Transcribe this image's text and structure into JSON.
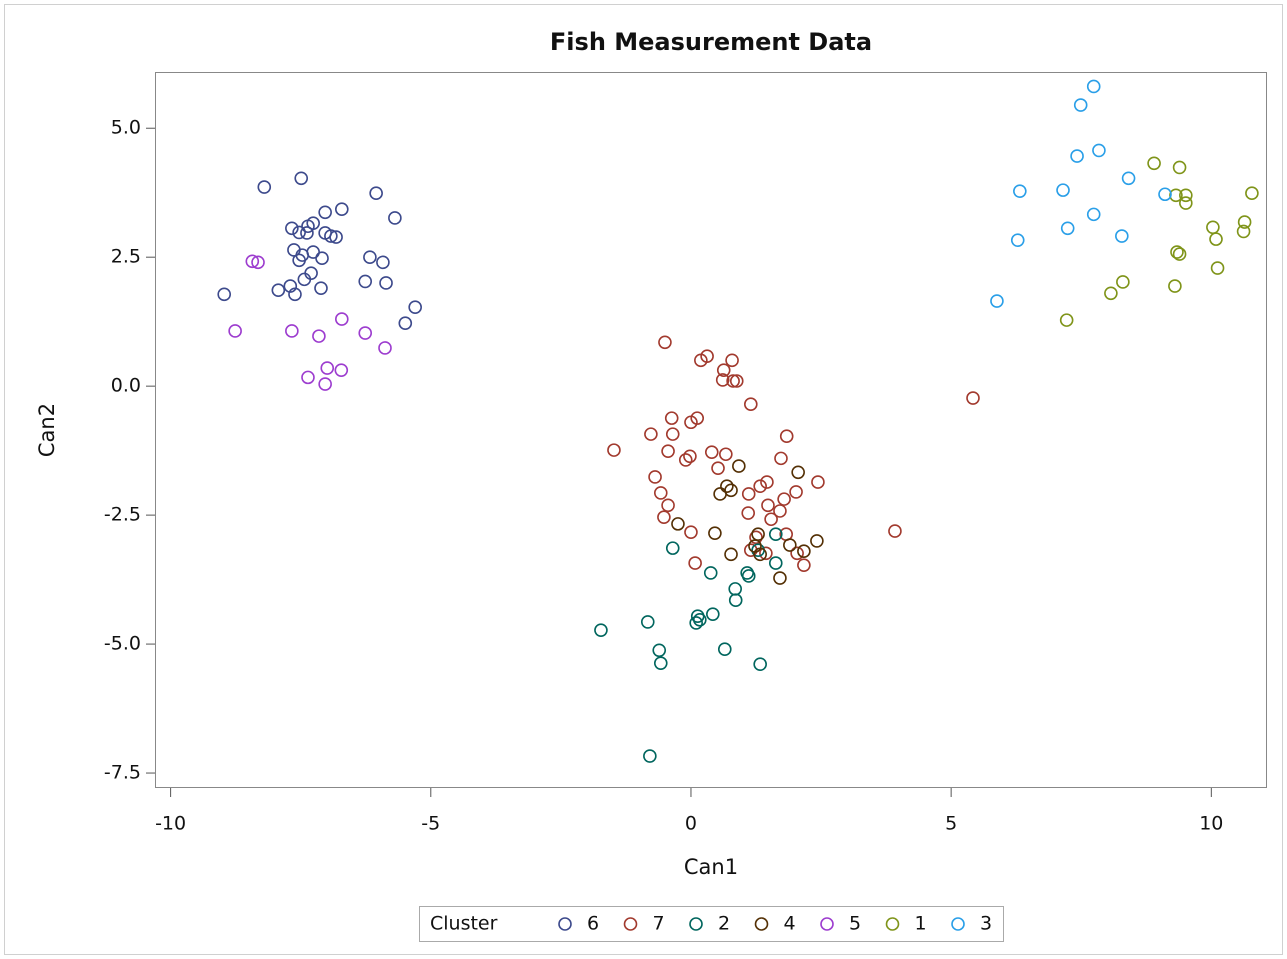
{
  "chart_data": {
    "type": "scatter",
    "title": "Fish Measurement Data",
    "x_label": "Can1",
    "y_label": "Can2",
    "legend_title": "Cluster",
    "legend": "bottom",
    "xlim": [
      -10.3,
      11.07
    ],
    "ylim": [
      -7.79,
      6.09
    ],
    "xticks": [
      -10,
      -5,
      0,
      5,
      10
    ],
    "yticks": [
      {
        "value": 5,
        "label": "5.0"
      },
      {
        "value": 2.5,
        "label": "2.5"
      },
      {
        "value": 0,
        "label": "0.0"
      },
      {
        "value": -2.5,
        "label": "-2.5"
      },
      {
        "value": -5,
        "label": "-5.0"
      },
      {
        "value": -7.5,
        "label": "-7.5"
      }
    ],
    "series": [
      {
        "name": "6",
        "color": "#3d4a8c",
        "x": [
          -8.97,
          -8.2,
          -7.49,
          -7.67,
          -7.53,
          -7.36,
          -7.26,
          -7.38,
          -7.03,
          -7.03,
          -6.92,
          -6.82,
          -6.71,
          -6.05,
          -5.69,
          -7.63,
          -7.53,
          -7.47,
          -7.26,
          -7.09,
          -7.3,
          -7.43,
          -7.7,
          -7.93,
          -7.61,
          -7.11,
          -6.17,
          -5.92,
          -6.26,
          -5.86,
          -5.3,
          -5.49
        ],
        "values": [
          1.78,
          3.86,
          4.03,
          3.06,
          2.98,
          3.1,
          3.16,
          2.97,
          3.37,
          2.97,
          2.91,
          2.89,
          3.43,
          3.74,
          3.26,
          2.64,
          2.44,
          2.54,
          2.6,
          2.48,
          2.19,
          2.07,
          1.94,
          1.86,
          1.78,
          1.9,
          2.5,
          2.4,
          2.03,
          2.0,
          1.53,
          1.22
        ]
      },
      {
        "name": "7",
        "color": "#a23a2e",
        "x": [
          -0.5,
          0.19,
          0.31,
          0.79,
          0.63,
          0.61,
          0.81,
          0.88,
          1.15,
          -0.37,
          0.12,
          0.0,
          -0.77,
          -0.35,
          1.84,
          -1.48,
          -0.44,
          0.4,
          0.67,
          -0.02,
          -0.1,
          1.73,
          0.52,
          -0.69,
          1.46,
          1.33,
          -0.58,
          1.11,
          2.02,
          2.44,
          -0.44,
          1.48,
          1.79,
          -0.52,
          1.1,
          1.54,
          1.71,
          0.0,
          1.25,
          1.83,
          3.92,
          1.15,
          1.44,
          2.04,
          2.17,
          0.08,
          5.42
        ],
        "values": [
          0.85,
          0.5,
          0.58,
          0.5,
          0.31,
          0.12,
          0.1,
          0.1,
          -0.35,
          -0.62,
          -0.62,
          -0.7,
          -0.93,
          -0.93,
          -0.97,
          -1.24,
          -1.26,
          -1.28,
          -1.32,
          -1.36,
          -1.43,
          -1.4,
          -1.59,
          -1.76,
          -1.86,
          -1.94,
          -2.07,
          -2.09,
          -2.05,
          -1.86,
          -2.31,
          -2.31,
          -2.19,
          -2.54,
          -2.46,
          -2.58,
          -2.42,
          -2.83,
          -2.93,
          -2.87,
          -2.81,
          -3.18,
          -3.24,
          -3.24,
          -3.47,
          -3.43,
          -0.23
        ]
      },
      {
        "name": "2",
        "color": "#01665e",
        "x": [
          -0.35,
          1.63,
          1.29,
          1.63,
          0.38,
          1.08,
          1.11,
          0.85,
          0.86,
          0.42,
          0.13,
          0.1,
          0.17,
          -1.73,
          -0.83,
          -0.61,
          -0.58,
          0.65,
          1.33,
          -0.79
        ],
        "values": [
          -3.14,
          -2.87,
          -3.18,
          -3.43,
          -3.62,
          -3.62,
          -3.68,
          -3.93,
          -4.15,
          -4.42,
          -4.46,
          -4.59,
          -4.53,
          -4.73,
          -4.57,
          -5.12,
          -5.37,
          -5.1,
          -5.39,
          -7.17
        ]
      },
      {
        "name": "4",
        "color": "#543005",
        "x": [
          0.92,
          2.06,
          0.69,
          0.77,
          0.56,
          -0.25,
          0.46,
          1.29,
          1.23,
          1.9,
          2.42,
          0.77,
          1.33,
          2.17,
          1.71
        ],
        "values": [
          -1.55,
          -1.67,
          -1.94,
          -2.02,
          -2.09,
          -2.67,
          -2.85,
          -2.87,
          -3.1,
          -3.08,
          -3.0,
          -3.26,
          -3.26,
          -3.2,
          -3.72
        ]
      },
      {
        "name": "5",
        "color": "#9d3dcf",
        "x": [
          -8.43,
          -8.32,
          -8.76,
          -7.67,
          -7.15,
          -6.71,
          -6.26,
          -5.88,
          -7.36,
          -6.99,
          -6.72,
          -7.03
        ],
        "values": [
          2.42,
          2.4,
          1.07,
          1.07,
          0.97,
          1.3,
          1.03,
          0.74,
          0.17,
          0.35,
          0.31,
          0.04
        ]
      },
      {
        "name": "1",
        "color": "#7f9419",
        "x": [
          8.9,
          9.39,
          9.32,
          9.51,
          9.51,
          10.78,
          10.03,
          10.64,
          10.62,
          10.09,
          9.34,
          9.39,
          10.12,
          8.3,
          8.07,
          9.3,
          7.22
        ],
        "values": [
          4.32,
          4.24,
          3.7,
          3.7,
          3.55,
          3.74,
          3.08,
          3.18,
          3.0,
          2.85,
          2.6,
          2.56,
          2.29,
          2.02,
          1.8,
          1.94,
          1.28
        ]
      },
      {
        "name": "3",
        "color": "#2a9fe8",
        "x": [
          7.74,
          7.49,
          7.84,
          7.42,
          8.41,
          6.32,
          7.15,
          9.11,
          7.74,
          7.24,
          8.28,
          6.28,
          5.88
        ],
        "values": [
          5.81,
          5.45,
          4.57,
          4.46,
          4.03,
          3.78,
          3.8,
          3.72,
          3.33,
          3.06,
          2.91,
          2.83,
          1.65
        ]
      }
    ]
  }
}
